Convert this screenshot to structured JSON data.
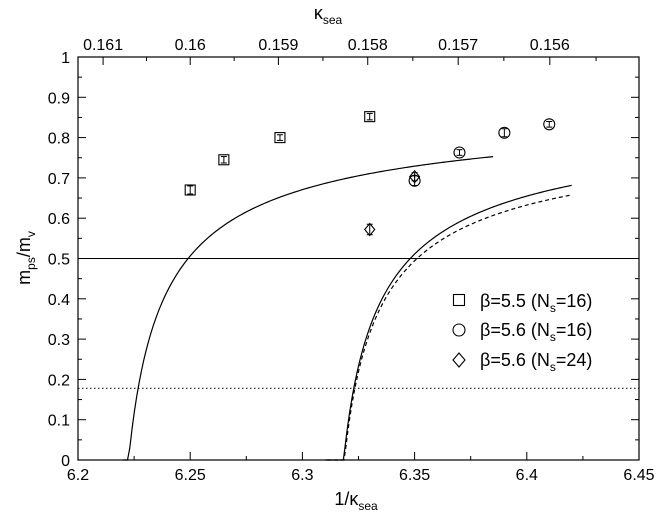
{
  "chart_data": {
    "type": "scatter",
    "x_axis": {
      "label": "1/κ",
      "label_sub": "sea",
      "range": [
        6.2,
        6.45
      ],
      "ticks": [
        6.2,
        6.25,
        6.3,
        6.35,
        6.4,
        6.45
      ],
      "tick_labels": [
        "6.2",
        "6.25",
        "6.3",
        "6.35",
        "6.4",
        "6.45"
      ]
    },
    "top_axis": {
      "label": "κ",
      "label_sub": "sea",
      "ticks": [
        0.161,
        0.16,
        0.159,
        0.158,
        0.157,
        0.156
      ],
      "tick_labels": [
        "0.161",
        "0.16",
        "0.159",
        "0.158",
        "0.157",
        "0.156"
      ]
    },
    "y_axis": {
      "label": "m",
      "label_sub1": "ps",
      "label_mid": "/m",
      "label_sub2": "v",
      "range": [
        0,
        1
      ],
      "ticks": [
        0,
        0.1,
        0.2,
        0.3,
        0.4,
        0.5,
        0.6,
        0.7,
        0.8,
        0.9,
        1
      ],
      "tick_labels": [
        "0",
        "0.1",
        "0.2",
        "0.3",
        "0.4",
        "0.5",
        "0.6",
        "0.7",
        "0.8",
        "0.9",
        "1"
      ]
    },
    "series": [
      {
        "name": "β=5.5 (N",
        "name_sub": "s",
        "name_end": "=16)",
        "marker": "square",
        "points": [
          {
            "x": 6.25,
            "y": 0.67,
            "err": 0.01
          },
          {
            "x": 6.265,
            "y": 0.745,
            "err": 0.008
          },
          {
            "x": 6.29,
            "y": 0.8,
            "err": 0.007
          },
          {
            "x": 6.33,
            "y": 0.852,
            "err": 0.008
          }
        ],
        "fit": {
          "style": "solid",
          "x_range": [
            6.22,
            6.385
          ],
          "x0": 6.2129,
          "A": 0.9095,
          "p": 0.62
        }
      },
      {
        "name": "β=5.6 (N",
        "name_sub": "s",
        "name_end": "=16)",
        "marker": "circle",
        "points": [
          {
            "x": 6.35,
            "y": 0.693,
            "err": 0.012
          },
          {
            "x": 6.37,
            "y": 0.763,
            "err": 0.007
          },
          {
            "x": 6.39,
            "y": 0.812,
            "err": 0.01
          },
          {
            "x": 6.41,
            "y": 0.833,
            "err": 0.007
          }
        ],
        "fit": {
          "style": "solid",
          "x_range": [
            6.31,
            6.42
          ],
          "x0": 6.3088,
          "A": 0.8964,
          "p": 0.593
        }
      },
      {
        "name": "β=5.6 (N",
        "name_sub": "s",
        "name_end": "=24)",
        "marker": "diamond",
        "points": [
          {
            "x": 6.33,
            "y": 0.572,
            "err": 0.013
          },
          {
            "x": 6.35,
            "y": 0.703,
            "err": 0.01
          }
        ],
        "fit": {
          "style": "dashed",
          "x_range": [
            6.311,
            6.42
          ],
          "x0": 6.3091,
          "A": 0.8533,
          "p": 0.614
        }
      }
    ],
    "reference_lines": [
      {
        "y": 0.5,
        "style": "solid"
      },
      {
        "y": 0.178,
        "style": "dotted"
      }
    ],
    "legend_position": "right-middle",
    "grid": false
  }
}
